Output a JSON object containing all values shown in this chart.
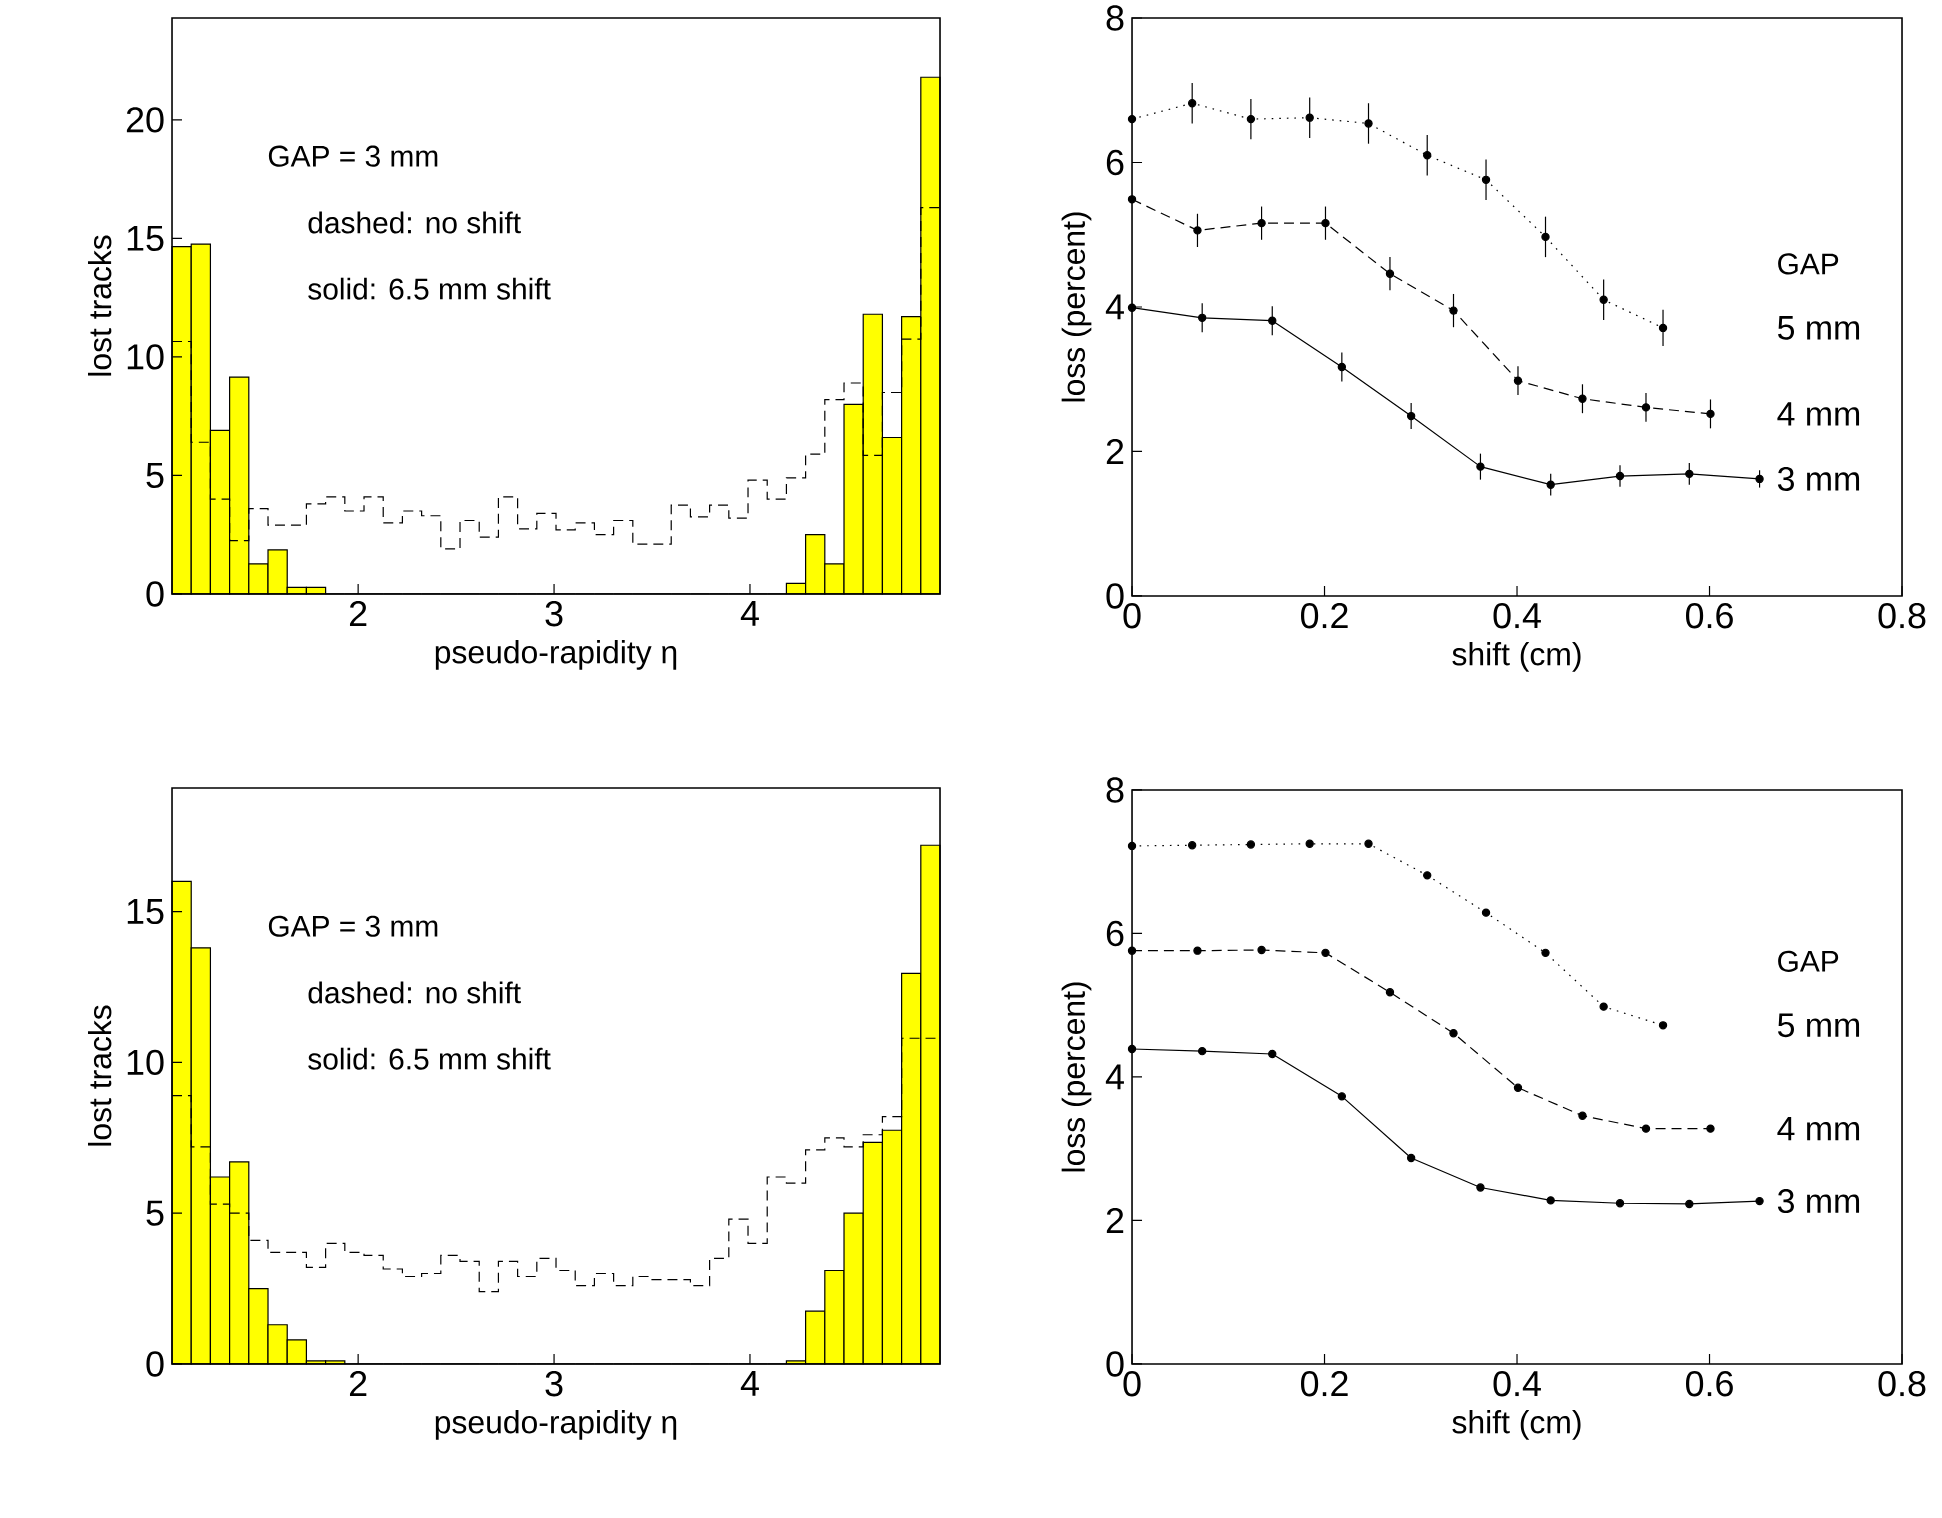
{
  "chart_data": [
    {
      "type": "histogram",
      "xlabel": "pseudo-rapidity η",
      "ylabel": "lost tracks",
      "annotations": [
        "GAP = 3 mm",
        "dashed: no shift",
        "solid: 6.5 mm shift"
      ],
      "bins": [
        1.05,
        1.148,
        1.246,
        1.344,
        1.442,
        1.54,
        1.638,
        1.736,
        1.834,
        1.932,
        2.03,
        2.128,
        2.226,
        2.324,
        2.422,
        2.52,
        2.618,
        2.716,
        2.814,
        2.912,
        3.01,
        3.108,
        3.206,
        3.304,
        3.402,
        3.5,
        3.598,
        3.696,
        3.794,
        3.892,
        3.99,
        4.088,
        4.186,
        4.284,
        4.382,
        4.48,
        4.578,
        4.676,
        4.774,
        4.872,
        4.97
      ],
      "xlim": [
        1.05,
        4.97
      ],
      "xticks": [
        2,
        3,
        4
      ],
      "ylim": [
        0,
        24.3
      ],
      "yticks": [
        0,
        5,
        10,
        15,
        20
      ],
      "series": [
        {
          "color": "#ffff00",
          "line_style": "solid",
          "values": [
            14.65,
            14.76,
            6.9,
            9.15,
            1.27,
            1.86,
            0.28,
            0.28,
            0,
            0,
            0,
            0,
            0,
            0,
            0,
            0,
            0,
            0,
            0,
            0,
            0,
            0,
            0,
            0,
            0,
            0,
            0,
            0,
            0,
            0,
            0,
            0,
            0.45,
            2.5,
            1.27,
            8.0,
            11.8,
            6.6,
            11.7,
            21.8
          ]
        },
        {
          "color": "#000000",
          "line_style": "dashed",
          "values": [
            10.65,
            6.4,
            4.0,
            2.25,
            3.6,
            2.9,
            2.9,
            3.8,
            4.1,
            3.5,
            4.1,
            3.0,
            3.5,
            3.3,
            1.9,
            3.1,
            2.4,
            4.1,
            2.75,
            3.4,
            2.7,
            3.0,
            2.5,
            3.1,
            2.1,
            2.1,
            3.75,
            3.25,
            3.75,
            3.2,
            4.8,
            4.0,
            4.9,
            5.9,
            8.2,
            8.9,
            5.85,
            8.5,
            10.75,
            16.3
          ]
        }
      ]
    },
    {
      "type": "line",
      "xlabel": "shift (cm)",
      "ylabel": "loss (percent)",
      "legend_title": "GAP",
      "marker": "circle",
      "xlim": [
        0,
        0.8
      ],
      "xticks": [
        0,
        0.2,
        0.4,
        0.6,
        0.8
      ],
      "ylim": [
        0,
        8
      ],
      "yticks": [
        0,
        2,
        4,
        6,
        8
      ],
      "series": [
        {
          "name": "5 mm",
          "color": "#000000",
          "line_style": "dotted",
          "x": [
            0,
            0.0625,
            0.1235,
            0.1846,
            0.2457,
            0.3067,
            0.3678,
            0.4296,
            0.49,
            0.5517
          ],
          "values": [
            6.6,
            6.82,
            6.6,
            6.62,
            6.54,
            6.1,
            5.76,
            4.97,
            4.1,
            3.71
          ],
          "errors": [
            null,
            0.28,
            0.28,
            0.28,
            0.28,
            0.28,
            0.28,
            0.28,
            0.28,
            0.25
          ]
        },
        {
          "name": "4 mm",
          "color": "#000000",
          "line_style": "dashed",
          "x": [
            0,
            0.068,
            0.1346,
            0.201,
            0.268,
            0.334,
            0.401,
            0.468,
            0.534,
            0.601
          ],
          "values": [
            5.49,
            5.06,
            5.16,
            5.16,
            4.46,
            3.95,
            2.98,
            2.73,
            2.61,
            2.52
          ],
          "errors": [
            null,
            0.23,
            0.23,
            0.23,
            0.23,
            0.23,
            0.2,
            0.2,
            0.2,
            0.2
          ]
        },
        {
          "name": "3 mm",
          "color": "#000000",
          "line_style": "solid",
          "x": [
            0,
            0.0729,
            0.1457,
            0.218,
            0.29,
            0.362,
            0.435,
            0.507,
            0.579,
            0.652
          ],
          "values": [
            3.99,
            3.85,
            3.81,
            3.17,
            2.49,
            1.79,
            1.54,
            1.66,
            1.69,
            1.62
          ],
          "errors": [
            null,
            0.2,
            0.2,
            0.2,
            0.18,
            0.18,
            0.15,
            0.15,
            0.15,
            0.12
          ]
        }
      ]
    },
    {
      "type": "histogram",
      "xlabel": "pseudo-rapidity η",
      "ylabel": "lost tracks",
      "annotations": [
        "GAP = 3 mm",
        "dashed: no shift",
        "solid: 6.5 mm shift"
      ],
      "bins": [
        1.05,
        1.148,
        1.246,
        1.344,
        1.442,
        1.54,
        1.638,
        1.736,
        1.834,
        1.932,
        2.03,
        2.128,
        2.226,
        2.324,
        2.422,
        2.52,
        2.618,
        2.716,
        2.814,
        2.912,
        3.01,
        3.108,
        3.206,
        3.304,
        3.402,
        3.5,
        3.598,
        3.696,
        3.794,
        3.892,
        3.99,
        4.088,
        4.186,
        4.284,
        4.382,
        4.48,
        4.578,
        4.676,
        4.774,
        4.872,
        4.97
      ],
      "xlim": [
        1.05,
        4.97
      ],
      "xticks": [
        2,
        3,
        4
      ],
      "ylim": [
        0,
        19.1
      ],
      "yticks": [
        0,
        5,
        10,
        15
      ],
      "series": [
        {
          "color": "#ffff00",
          "line_style": "solid",
          "values": [
            16.0,
            13.8,
            6.2,
            6.7,
            2.5,
            1.3,
            0.8,
            0.1,
            0.1,
            0,
            0,
            0,
            0,
            0,
            0,
            0,
            0,
            0,
            0,
            0,
            0,
            0,
            0,
            0,
            0,
            0,
            0,
            0,
            0,
            0,
            0,
            0,
            0.1,
            1.75,
            3.1,
            5.0,
            7.35,
            7.75,
            12.95,
            17.2
          ]
        },
        {
          "color": "#000000",
          "line_style": "dashed",
          "values": [
            8.9,
            7.2,
            5.3,
            5.0,
            4.1,
            3.7,
            3.7,
            3.2,
            4.0,
            3.7,
            3.6,
            3.15,
            2.9,
            3.0,
            3.6,
            3.4,
            2.4,
            3.4,
            2.9,
            3.5,
            3.1,
            2.6,
            3.0,
            2.6,
            2.9,
            2.8,
            2.8,
            2.6,
            3.5,
            4.8,
            4.0,
            6.2,
            6.0,
            7.1,
            7.5,
            7.2,
            7.6,
            8.2,
            10.8,
            10.8
          ]
        }
      ]
    },
    {
      "type": "line",
      "xlabel": "shift (cm)",
      "ylabel": "loss (percent)",
      "legend_title": "GAP",
      "marker": "circle",
      "xlim": [
        0,
        0.8
      ],
      "xticks": [
        0,
        0.2,
        0.4,
        0.6,
        0.8
      ],
      "ylim": [
        0,
        8
      ],
      "yticks": [
        0,
        2,
        4,
        6,
        8
      ],
      "series": [
        {
          "name": "5 mm",
          "color": "#000000",
          "line_style": "dotted",
          "x": [
            0,
            0.0625,
            0.1235,
            0.1846,
            0.2457,
            0.3067,
            0.3678,
            0.4296,
            0.49,
            0.5517
          ],
          "values": [
            7.22,
            7.23,
            7.24,
            7.25,
            7.25,
            6.81,
            6.29,
            5.73,
            4.98,
            4.72
          ]
        },
        {
          "name": "4 mm",
          "color": "#000000",
          "line_style": "dashed",
          "x": [
            0,
            0.068,
            0.1346,
            0.201,
            0.268,
            0.334,
            0.401,
            0.468,
            0.534,
            0.601
          ],
          "values": [
            5.76,
            5.76,
            5.77,
            5.73,
            5.18,
            4.61,
            3.85,
            3.46,
            3.28,
            3.28
          ]
        },
        {
          "name": "3 mm",
          "color": "#000000",
          "line_style": "solid",
          "x": [
            0,
            0.0729,
            0.1457,
            0.218,
            0.29,
            0.362,
            0.435,
            0.507,
            0.579,
            0.652
          ],
          "values": [
            4.39,
            4.36,
            4.32,
            3.73,
            2.87,
            2.46,
            2.28,
            2.24,
            2.23,
            2.27
          ]
        }
      ]
    }
  ]
}
